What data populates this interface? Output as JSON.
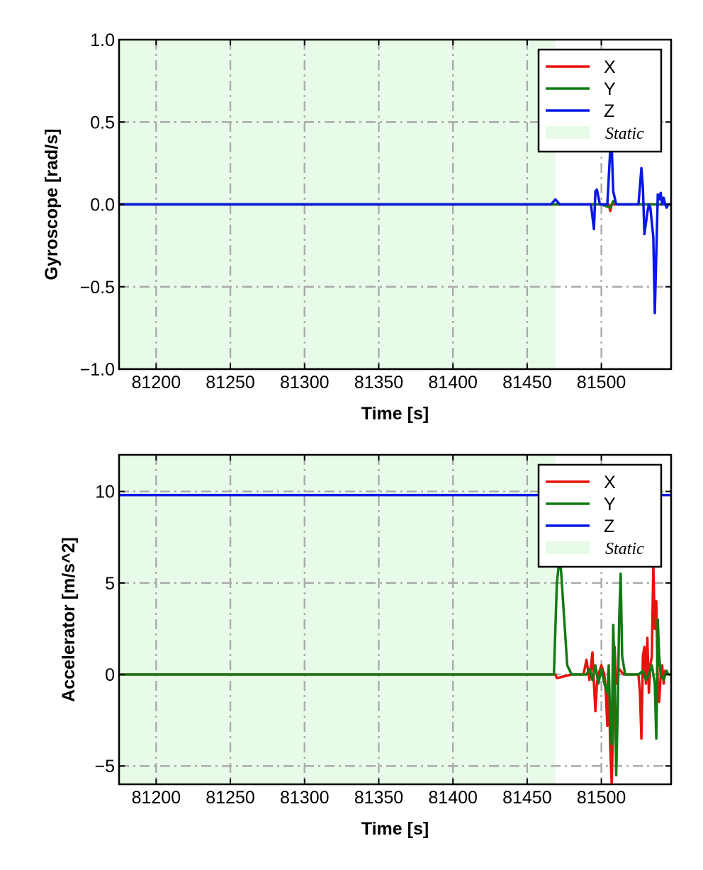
{
  "chart_data": [
    {
      "type": "line",
      "xlabel": "Time [s]",
      "ylabel": "Gyroscope [rad/s]",
      "xlim": [
        81175,
        81547
      ],
      "ylim": [
        -1.0,
        1.0
      ],
      "xticks": [
        81200,
        81250,
        81300,
        81350,
        81400,
        81450,
        81500
      ],
      "yticks": [
        -1.0,
        -0.5,
        0.0,
        0.5,
        1.0
      ],
      "xtick_labels": [
        "81200",
        "81250",
        "81300",
        "81350",
        "81400",
        "81450",
        "81500"
      ],
      "ytick_labels": [
        "−1.0",
        "−0.5",
        "0.0",
        "0.5",
        "1.0"
      ],
      "grid": true,
      "legend_position": "top-right",
      "legend": [
        "X",
        "Y",
        "Z",
        "Static"
      ],
      "static_region": [
        81175,
        81469
      ],
      "series": [
        {
          "name": "X",
          "color": "#e8120c",
          "x": [
            81175,
            81470,
            81495,
            81500,
            81505,
            81506,
            81507,
            81510,
            81525,
            81535,
            81540,
            81547
          ],
          "y": [
            0.0,
            0.0,
            0.0,
            0.0,
            0.0,
            -0.04,
            0.0,
            0.0,
            0.0,
            0.0,
            0.0,
            0.0
          ]
        },
        {
          "name": "Y",
          "color": "#127a12",
          "x": [
            81175,
            81500,
            81506,
            81508,
            81510,
            81547
          ],
          "y": [
            0.0,
            0.0,
            -0.02,
            0.02,
            0.0,
            0.0
          ]
        },
        {
          "name": "Z",
          "color": "#0a18e6",
          "x": [
            81175,
            81466,
            81469,
            81472,
            81493,
            81495,
            81496,
            81497,
            81499,
            81504,
            81506,
            81507,
            81508,
            81510,
            81513,
            81525,
            81527,
            81528,
            81529,
            81531,
            81532,
            81533,
            81535,
            81536,
            81537,
            81538,
            81539,
            81540,
            81541,
            81542,
            81543,
            81544,
            81545,
            81547
          ],
          "y": [
            0.0,
            0.0,
            0.03,
            0.0,
            0.0,
            -0.15,
            0.08,
            0.09,
            0.0,
            0.0,
            0.33,
            0.35,
            0.08,
            0.0,
            0.0,
            0.0,
            0.22,
            0.1,
            -0.18,
            -0.05,
            0.0,
            -0.02,
            -0.2,
            -0.66,
            -0.3,
            0.06,
            0.03,
            0.07,
            0.0,
            0.04,
            0.0,
            -0.02,
            0.0,
            0.0
          ]
        }
      ]
    },
    {
      "type": "line",
      "xlabel": "Time [s]",
      "ylabel": "Accelerator [m/s^2]",
      "xlim": [
        81175,
        81547
      ],
      "ylim": [
        -6.0,
        12.0
      ],
      "xticks": [
        81200,
        81250,
        81300,
        81350,
        81400,
        81450,
        81500
      ],
      "yticks": [
        -5,
        0,
        5,
        10
      ],
      "xtick_labels": [
        "81200",
        "81250",
        "81300",
        "81350",
        "81400",
        "81450",
        "81500"
      ],
      "ytick_labels": [
        "−5",
        "0",
        "5",
        "10"
      ],
      "grid": true,
      "legend_position": "top-right",
      "legend": [
        "X",
        "Y",
        "Z",
        "Static"
      ],
      "static_region": [
        81175,
        81469
      ],
      "series": [
        {
          "name": "X",
          "color": "#e8120c",
          "x": [
            81175,
            81469,
            81470,
            81480,
            81488,
            81490,
            81492,
            81494,
            81495,
            81496,
            81497,
            81498,
            81500,
            81502,
            81503,
            81504,
            81505,
            81506,
            81507,
            81508,
            81509,
            81510,
            81512,
            81515,
            81520,
            81525,
            81526,
            81527,
            81528,
            81529,
            81530,
            81531,
            81532,
            81533,
            81534,
            81535,
            81536,
            81537,
            81538,
            81539,
            81540,
            81541,
            81542,
            81543,
            81545,
            81547
          ],
          "y": [
            0.0,
            0.0,
            -0.2,
            0.0,
            0.0,
            0.8,
            -0.3,
            1.2,
            -0.5,
            -2.0,
            -0.5,
            0.0,
            0.5,
            0.0,
            -1.0,
            -2.8,
            0.0,
            -4.0,
            -6.0,
            -2.5,
            1.5,
            -0.5,
            0.3,
            0.0,
            0.0,
            0.0,
            -1.0,
            -3.5,
            1.0,
            1.5,
            -0.5,
            2.0,
            -1.0,
            0.5,
            1.0,
            6.0,
            2.5,
            4.0,
            -0.5,
            -1.5,
            0.0,
            0.5,
            -0.5,
            0.2,
            0.0,
            0.0
          ]
        },
        {
          "name": "Y",
          "color": "#127a12",
          "x": [
            81175,
            81466,
            81468,
            81470,
            81472,
            81473,
            81475,
            81477,
            81480,
            81490,
            81492,
            81494,
            81496,
            81497,
            81498,
            81500,
            81502,
            81504,
            81505,
            81506,
            81507,
            81508,
            81509,
            81510,
            81511,
            81512,
            81513,
            81514,
            81516,
            81520,
            81525,
            81528,
            81530,
            81532,
            81534,
            81536,
            81537,
            81538,
            81539,
            81540,
            81542,
            81544,
            81545,
            81547
          ],
          "y": [
            0.0,
            0.0,
            0.0,
            5.0,
            6.5,
            5.5,
            3.0,
            0.5,
            0.0,
            0.0,
            0.3,
            -0.3,
            0.5,
            0.0,
            -0.5,
            0.3,
            -0.5,
            -1.0,
            0.5,
            -2.5,
            -3.8,
            2.7,
            0.0,
            -5.5,
            -2.0,
            3.0,
            5.5,
            1.0,
            0.0,
            0.0,
            0.0,
            0.2,
            -0.3,
            0.0,
            0.5,
            -0.5,
            -3.5,
            3.0,
            1.0,
            0.0,
            -0.3,
            0.2,
            0.0,
            0.0
          ]
        },
        {
          "name": "Z",
          "color": "#0a18e6",
          "x": [
            81175,
            81547
          ],
          "y": [
            9.8,
            9.8
          ]
        }
      ]
    }
  ]
}
